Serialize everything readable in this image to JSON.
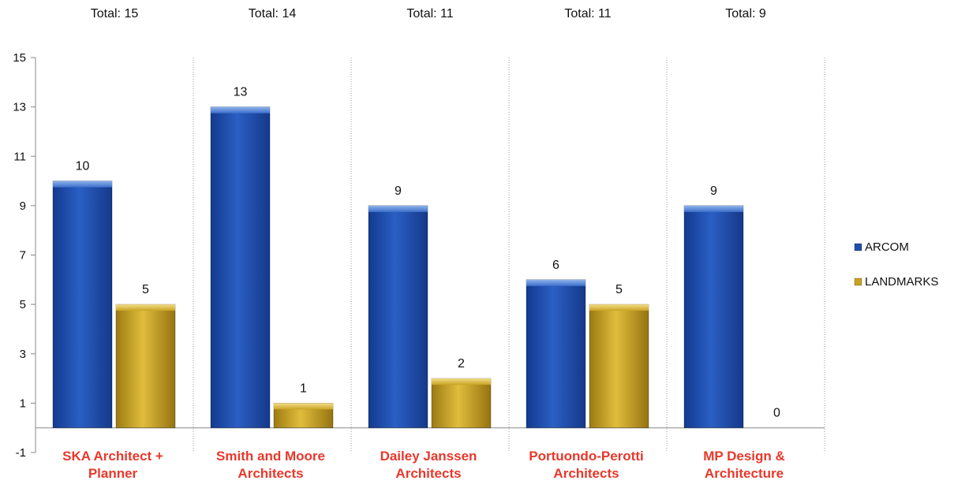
{
  "chart_data": {
    "type": "bar",
    "title": "",
    "xlabel": "",
    "ylabel": "",
    "categories": [
      [
        "SKA Architect +",
        "Planner"
      ],
      [
        "Smith and Moore",
        "Architects"
      ],
      [
        "Dailey Janssen",
        "Architects"
      ],
      [
        "Portuondo-Perotti",
        "Architects"
      ],
      [
        "MP Design &",
        "Architecture"
      ]
    ],
    "totals": [
      "Total: 15",
      "Total: 14",
      "Total: 11",
      "Total: 11",
      "Total: 9"
    ],
    "series": [
      {
        "name": "ARCOM",
        "values": [
          10,
          13,
          9,
          6,
          9
        ]
      },
      {
        "name": "LANDMARKS",
        "values": [
          5,
          1,
          2,
          5,
          0
        ]
      }
    ],
    "ylim": [
      -1,
      15
    ],
    "yticks": [
      -1,
      1,
      3,
      5,
      7,
      9,
      11,
      13,
      15
    ],
    "legend_position": "right",
    "colors": {
      "ARCOM": "#1f4fae",
      "LANDMARKS": "#c9a320",
      "category_label": "#e8382b"
    }
  }
}
